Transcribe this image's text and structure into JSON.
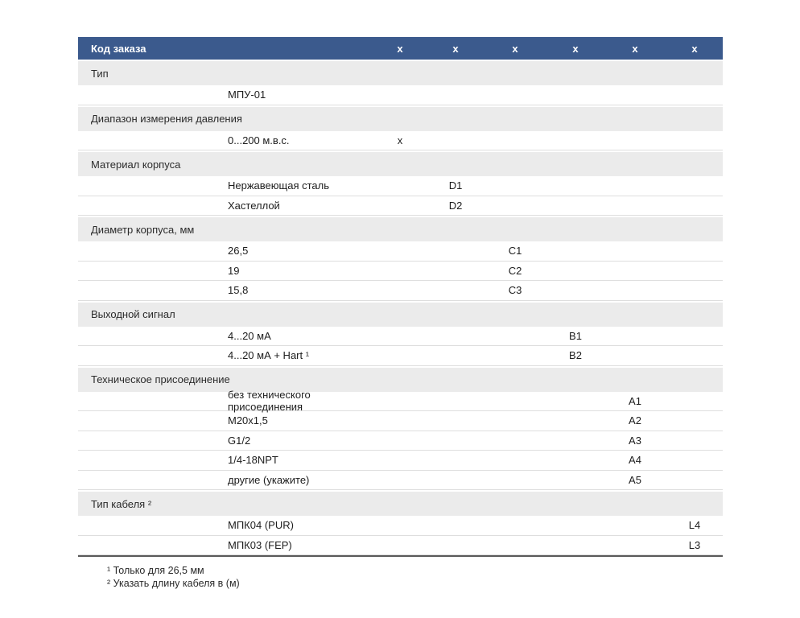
{
  "table": {
    "title": "Код заказа",
    "columns": [
      "x",
      "x",
      "x",
      "x",
      "x",
      "x"
    ]
  },
  "sections": [
    {
      "label": "Тип",
      "rows": [
        {
          "value": "МПУ-01",
          "code": ""
        }
      ]
    },
    {
      "label": "Диапазон измерения давления",
      "rows": [
        {
          "value": "0...200 м.в.с.",
          "code": "x",
          "column": 1
        }
      ]
    },
    {
      "label": "Материал корпуса",
      "rows": [
        {
          "value": "Нержавеющая сталь",
          "code": "D1",
          "column": 2
        },
        {
          "value": "Хастеллой",
          "code": "D2",
          "column": 2
        }
      ]
    },
    {
      "label": "Диаметр корпуса, мм",
      "rows": [
        {
          "value": "26,5",
          "code": "C1",
          "column": 3
        },
        {
          "value": "19",
          "code": "C2",
          "column": 3
        },
        {
          "value": "15,8",
          "code": "C3",
          "column": 3
        }
      ]
    },
    {
      "label": "Выходной сигнал",
      "rows": [
        {
          "value": "4...20 мА",
          "code": "B1",
          "column": 4
        },
        {
          "value": "4...20 мА + Hart ¹",
          "code": "B2",
          "column": 4
        }
      ]
    },
    {
      "label": "Техническое присоединение",
      "rows": [
        {
          "value": "без технического присоединения",
          "code": "A1",
          "column": 5
        },
        {
          "value": "M20x1,5",
          "code": "A2",
          "column": 5
        },
        {
          "value": "G1/2",
          "code": "A3",
          "column": 5
        },
        {
          "value": "1/4-18NPT",
          "code": "A4",
          "column": 5
        },
        {
          "value": "другие (укажите)",
          "code": "A5",
          "column": 5
        }
      ]
    },
    {
      "label": "Тип кабеля ²",
      "rows": [
        {
          "value": "МПК04 (PUR)",
          "code": "L4",
          "column": 6
        },
        {
          "value": "МПК03 (FEP)",
          "code": "L3",
          "column": 6
        }
      ]
    }
  ],
  "footnotes": [
    "¹ Только для 26,5 мм",
    "² Указать длину кабеля в (м)"
  ],
  "colors": {
    "header_bg": "#3b5a8d",
    "header_text": "#ffffff",
    "section_bg": "#ebebeb",
    "row_divider": "#dedede",
    "table_bottom_border": "#5a5a5a"
  }
}
